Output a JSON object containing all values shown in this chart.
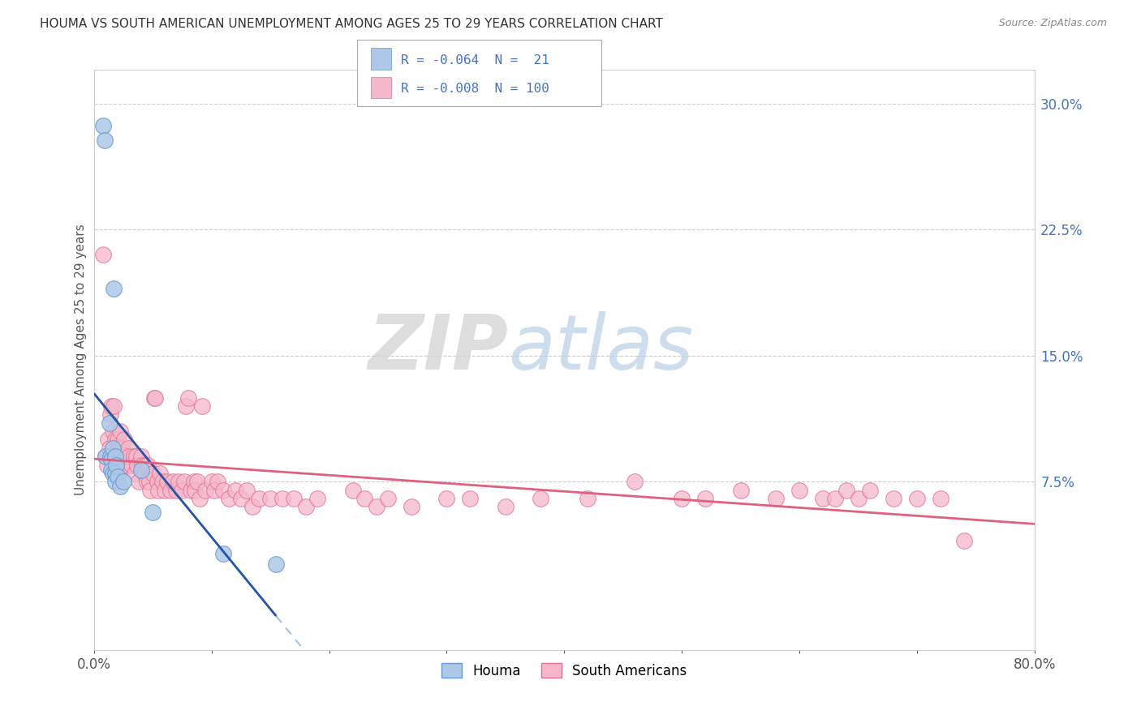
{
  "title": "HOUMA VS SOUTH AMERICAN UNEMPLOYMENT AMONG AGES 25 TO 29 YEARS CORRELATION CHART",
  "source": "Source: ZipAtlas.com",
  "ylabel": "Unemployment Among Ages 25 to 29 years",
  "xlim": [
    0.0,
    0.8
  ],
  "ylim": [
    -0.025,
    0.32
  ],
  "yticks_right": [
    0.075,
    0.15,
    0.225,
    0.3
  ],
  "ytick_right_labels": [
    "7.5%",
    "15.0%",
    "22.5%",
    "30.0%"
  ],
  "houma_color": "#adc8e8",
  "houma_edge": "#6699cc",
  "pink_color": "#f5b8cb",
  "pink_edge": "#e07090",
  "houma_R": "-0.064",
  "houma_N": "21",
  "south_R": "-0.008",
  "south_N": "100",
  "background": "#ffffff",
  "grid_color": "#cccccc",
  "houma_line_color": "#2255aa",
  "south_line_color": "#e06080",
  "dash_color": "#99bbdd",
  "houma_x": [
    0.008,
    0.009,
    0.01,
    0.013,
    0.014,
    0.015,
    0.015,
    0.016,
    0.016,
    0.017,
    0.018,
    0.018,
    0.018,
    0.019,
    0.02,
    0.022,
    0.025,
    0.04,
    0.05,
    0.11,
    0.155
  ],
  "houma_y": [
    0.287,
    0.278,
    0.09,
    0.11,
    0.09,
    0.088,
    0.082,
    0.095,
    0.08,
    0.19,
    0.09,
    0.08,
    0.075,
    0.085,
    0.078,
    0.072,
    0.075,
    0.082,
    0.057,
    0.032,
    0.026
  ],
  "south_x": [
    0.008,
    0.01,
    0.011,
    0.012,
    0.013,
    0.014,
    0.015,
    0.016,
    0.017,
    0.018,
    0.019,
    0.02,
    0.021,
    0.022,
    0.023,
    0.024,
    0.025,
    0.026,
    0.027,
    0.028,
    0.029,
    0.03,
    0.032,
    0.034,
    0.035,
    0.036,
    0.037,
    0.038,
    0.04,
    0.041,
    0.043,
    0.044,
    0.045,
    0.046,
    0.047,
    0.048,
    0.05,
    0.051,
    0.052,
    0.054,
    0.055,
    0.056,
    0.058,
    0.06,
    0.062,
    0.065,
    0.067,
    0.07,
    0.072,
    0.075,
    0.077,
    0.078,
    0.08,
    0.082,
    0.085,
    0.086,
    0.088,
    0.09,
    0.092,
    0.095,
    0.1,
    0.102,
    0.105,
    0.11,
    0.115,
    0.12,
    0.125,
    0.13,
    0.135,
    0.14,
    0.15,
    0.16,
    0.17,
    0.18,
    0.19,
    0.22,
    0.23,
    0.24,
    0.25,
    0.27,
    0.3,
    0.32,
    0.35,
    0.38,
    0.42,
    0.46,
    0.5,
    0.52,
    0.55,
    0.58,
    0.6,
    0.62,
    0.63,
    0.64,
    0.65,
    0.66,
    0.68,
    0.7,
    0.72,
    0.74
  ],
  "south_y": [
    0.21,
    0.09,
    0.085,
    0.1,
    0.095,
    0.115,
    0.12,
    0.105,
    0.12,
    0.1,
    0.09,
    0.1,
    0.095,
    0.105,
    0.09,
    0.095,
    0.085,
    0.1,
    0.09,
    0.085,
    0.095,
    0.09,
    0.085,
    0.09,
    0.08,
    0.09,
    0.085,
    0.075,
    0.09,
    0.085,
    0.08,
    0.085,
    0.075,
    0.085,
    0.075,
    0.07,
    0.08,
    0.125,
    0.125,
    0.075,
    0.07,
    0.08,
    0.075,
    0.07,
    0.075,
    0.07,
    0.075,
    0.07,
    0.075,
    0.07,
    0.075,
    0.12,
    0.125,
    0.07,
    0.075,
    0.07,
    0.075,
    0.065,
    0.12,
    0.07,
    0.075,
    0.07,
    0.075,
    0.07,
    0.065,
    0.07,
    0.065,
    0.07,
    0.06,
    0.065,
    0.065,
    0.065,
    0.065,
    0.06,
    0.065,
    0.07,
    0.065,
    0.06,
    0.065,
    0.06,
    0.065,
    0.065,
    0.06,
    0.065,
    0.065,
    0.075,
    0.065,
    0.065,
    0.07,
    0.065,
    0.07,
    0.065,
    0.065,
    0.07,
    0.065,
    0.07,
    0.065,
    0.065,
    0.065,
    0.04
  ]
}
